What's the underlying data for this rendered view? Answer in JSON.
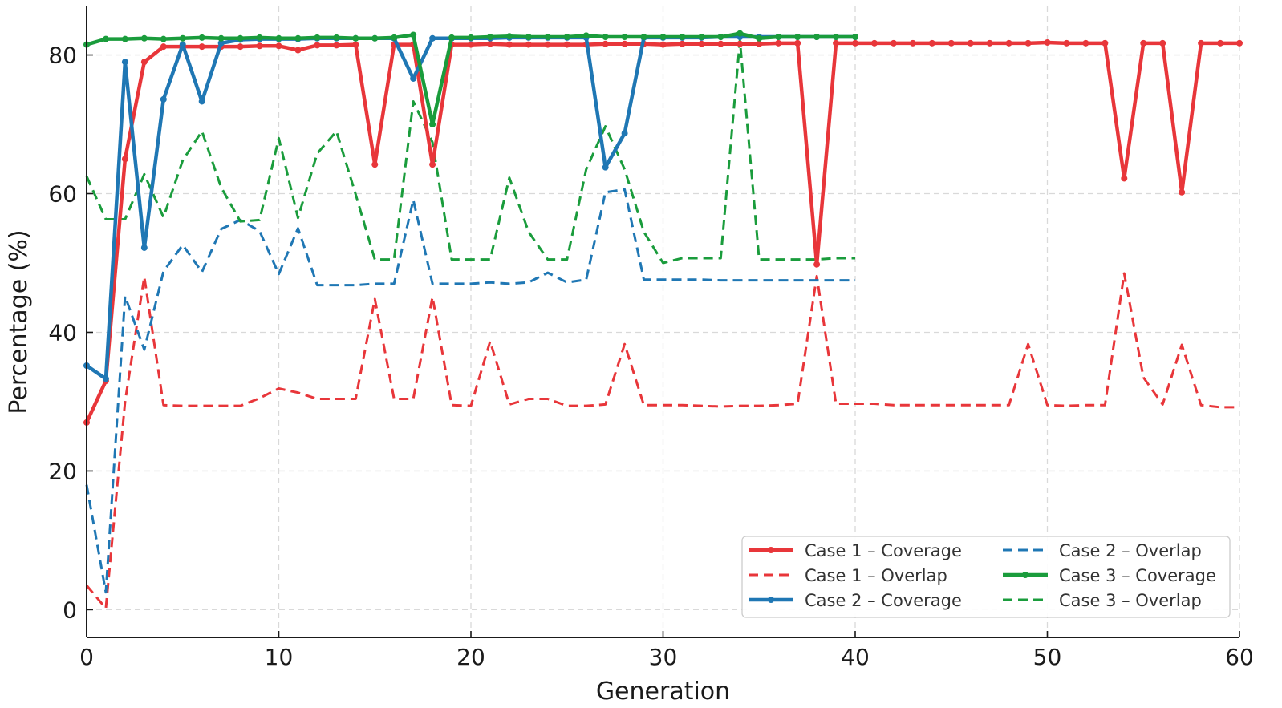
{
  "chart_data": {
    "type": "line",
    "title": "",
    "xlabel": "Generation",
    "ylabel": "Percentage (%)",
    "xlim": [
      0,
      60
    ],
    "ylim": [
      -4,
      87
    ],
    "xticks": [
      0,
      10,
      20,
      30,
      40,
      50,
      60
    ],
    "yticks": [
      0,
      20,
      40,
      60,
      80
    ],
    "grid": true,
    "legend_position": "bottom-right",
    "series": [
      {
        "name": "Case 1 – Coverage",
        "color": "#e8363a",
        "style": "solid",
        "markers": true,
        "x": [
          0,
          1,
          2,
          3,
          4,
          5,
          6,
          7,
          8,
          9,
          10,
          11,
          12,
          13,
          14,
          15,
          16,
          17,
          18,
          19,
          20,
          21,
          22,
          23,
          24,
          25,
          26,
          27,
          28,
          29,
          30,
          31,
          32,
          33,
          34,
          35,
          36,
          37,
          38,
          39,
          40,
          41,
          42,
          43,
          44,
          45,
          46,
          47,
          48,
          49,
          50,
          51,
          52,
          53,
          54,
          55,
          56,
          57,
          58,
          59,
          60
        ],
        "y": [
          27,
          33,
          65,
          79,
          81.2,
          81.2,
          81.2,
          81.2,
          81.2,
          81.3,
          81.3,
          80.7,
          81.4,
          81.4,
          81.5,
          64.2,
          81.5,
          81.5,
          64.2,
          81.5,
          81.5,
          81.6,
          81.5,
          81.5,
          81.5,
          81.5,
          81.5,
          81.6,
          81.6,
          81.6,
          81.5,
          81.6,
          81.6,
          81.6,
          81.6,
          81.6,
          81.7,
          81.7,
          49.8,
          81.7,
          81.7,
          81.7,
          81.7,
          81.7,
          81.7,
          81.7,
          81.7,
          81.7,
          81.7,
          81.7,
          81.8,
          81.7,
          81.7,
          81.7,
          62.2,
          81.7,
          81.7,
          60.2,
          81.7,
          81.7,
          81.7
        ]
      },
      {
        "name": "Case 1 – Overlap",
        "color": "#e8363a",
        "style": "dashed",
        "markers": false,
        "x": [
          0,
          1,
          2,
          3,
          4,
          5,
          6,
          7,
          8,
          9,
          10,
          11,
          12,
          13,
          14,
          15,
          16,
          17,
          18,
          19,
          20,
          21,
          22,
          23,
          24,
          25,
          26,
          27,
          28,
          29,
          30,
          31,
          32,
          33,
          34,
          35,
          36,
          37,
          38,
          39,
          40,
          41,
          42,
          43,
          44,
          45,
          46,
          47,
          48,
          49,
          50,
          51,
          52,
          53,
          54,
          55,
          56,
          57,
          58,
          59,
          60
        ],
        "y": [
          3.5,
          0.2,
          30,
          48,
          29.5,
          29.4,
          29.4,
          29.4,
          29.4,
          30.5,
          31.9,
          31.3,
          30.4,
          30.4,
          30.4,
          44.8,
          30.4,
          30.4,
          45.1,
          29.5,
          29.4,
          38.7,
          29.6,
          30.4,
          30.4,
          29.4,
          29.4,
          29.6,
          38.3,
          29.5,
          29.5,
          29.5,
          29.4,
          29.3,
          29.4,
          29.4,
          29.5,
          29.7,
          48.1,
          29.7,
          29.7,
          29.7,
          29.5,
          29.5,
          29.5,
          29.5,
          29.5,
          29.5,
          29.5,
          38.3,
          29.5,
          29.4,
          29.5,
          29.5,
          48.5,
          33.5,
          29.6,
          38.2,
          29.5,
          29.2,
          29.2
        ]
      },
      {
        "name": "Case 2 – Coverage",
        "color": "#1f77b4",
        "style": "solid",
        "markers": true,
        "x": [
          0,
          1,
          2,
          3,
          4,
          5,
          6,
          7,
          8,
          9,
          10,
          11,
          12,
          13,
          14,
          15,
          16,
          17,
          18,
          19,
          20,
          21,
          22,
          23,
          24,
          25,
          26,
          27,
          28,
          29,
          30,
          31,
          32,
          33,
          34,
          35,
          36,
          37,
          38,
          39,
          40
        ],
        "y": [
          35.2,
          33.3,
          79,
          52.2,
          73.6,
          81.5,
          73.3,
          81.7,
          82.2,
          82.3,
          82.3,
          82.3,
          82.4,
          82.4,
          82.4,
          82.4,
          82.4,
          76.6,
          82.4,
          82.4,
          82.4,
          82.4,
          82.5,
          82.5,
          82.5,
          82.5,
          82.5,
          63.8,
          68.7,
          82.5,
          82.5,
          82.5,
          82.5,
          82.6,
          82.6,
          82.6,
          82.6,
          82.6,
          82.6,
          82.6,
          82.6
        ]
      },
      {
        "name": "Case 2 – Overlap",
        "color": "#1f77b4",
        "style": "dashed",
        "markers": false,
        "x": [
          0,
          1,
          2,
          3,
          4,
          5,
          6,
          7,
          8,
          9,
          10,
          11,
          12,
          13,
          14,
          15,
          16,
          17,
          18,
          19,
          20,
          21,
          22,
          23,
          24,
          25,
          26,
          27,
          28,
          29,
          30,
          31,
          32,
          33,
          34,
          35,
          36,
          37,
          38,
          39,
          40
        ],
        "y": [
          18,
          2.5,
          45.2,
          37.5,
          48.8,
          52.6,
          48.7,
          54.9,
          56.2,
          54.6,
          48.4,
          55,
          46.8,
          46.8,
          46.8,
          47,
          47,
          59.1,
          47,
          47,
          47,
          47.2,
          47,
          47.2,
          48.6,
          47.2,
          47.6,
          60.2,
          60.6,
          47.6,
          47.6,
          47.6,
          47.6,
          47.5,
          47.5,
          47.5,
          47.5,
          47.5,
          47.5,
          47.5,
          47.5
        ]
      },
      {
        "name": "Case 3 – Coverage",
        "color": "#1a9c3c",
        "style": "solid",
        "markers": true,
        "x": [
          0,
          1,
          2,
          3,
          4,
          5,
          6,
          7,
          8,
          9,
          10,
          11,
          12,
          13,
          14,
          15,
          16,
          17,
          18,
          19,
          20,
          21,
          22,
          23,
          24,
          25,
          26,
          27,
          28,
          29,
          30,
          31,
          32,
          33,
          34,
          35,
          36,
          37,
          38,
          39,
          40
        ],
        "y": [
          81.5,
          82.3,
          82.3,
          82.4,
          82.3,
          82.4,
          82.5,
          82.4,
          82.4,
          82.5,
          82.4,
          82.4,
          82.5,
          82.5,
          82.4,
          82.4,
          82.5,
          82.9,
          70,
          82.5,
          82.5,
          82.6,
          82.7,
          82.6,
          82.6,
          82.6,
          82.8,
          82.6,
          82.6,
          82.6,
          82.6,
          82.6,
          82.6,
          82.6,
          83.1,
          82.4,
          82.6,
          82.6,
          82.6,
          82.6,
          82.6
        ]
      },
      {
        "name": "Case 3 – Overlap",
        "color": "#1a9c3c",
        "style": "dashed",
        "markers": false,
        "x": [
          0,
          1,
          2,
          3,
          4,
          5,
          6,
          7,
          8,
          9,
          10,
          11,
          12,
          13,
          14,
          15,
          16,
          17,
          18,
          19,
          20,
          21,
          22,
          23,
          24,
          25,
          26,
          27,
          28,
          29,
          30,
          31,
          32,
          33,
          34,
          35,
          36,
          37,
          38,
          39,
          40
        ],
        "y": [
          62.5,
          56.3,
          56.3,
          62.8,
          56.6,
          64.8,
          69,
          60.9,
          56,
          56.2,
          68,
          56.5,
          65.8,
          69,
          59.9,
          50.5,
          50.5,
          73.3,
          67.4,
          50.5,
          50.5,
          50.5,
          62.3,
          54.5,
          50.5,
          50.5,
          63.5,
          69.7,
          63.5,
          54.5,
          50,
          50.7,
          50.7,
          50.7,
          82.1,
          50.5,
          50.5,
          50.5,
          50.5,
          50.7,
          50.7
        ]
      }
    ]
  }
}
